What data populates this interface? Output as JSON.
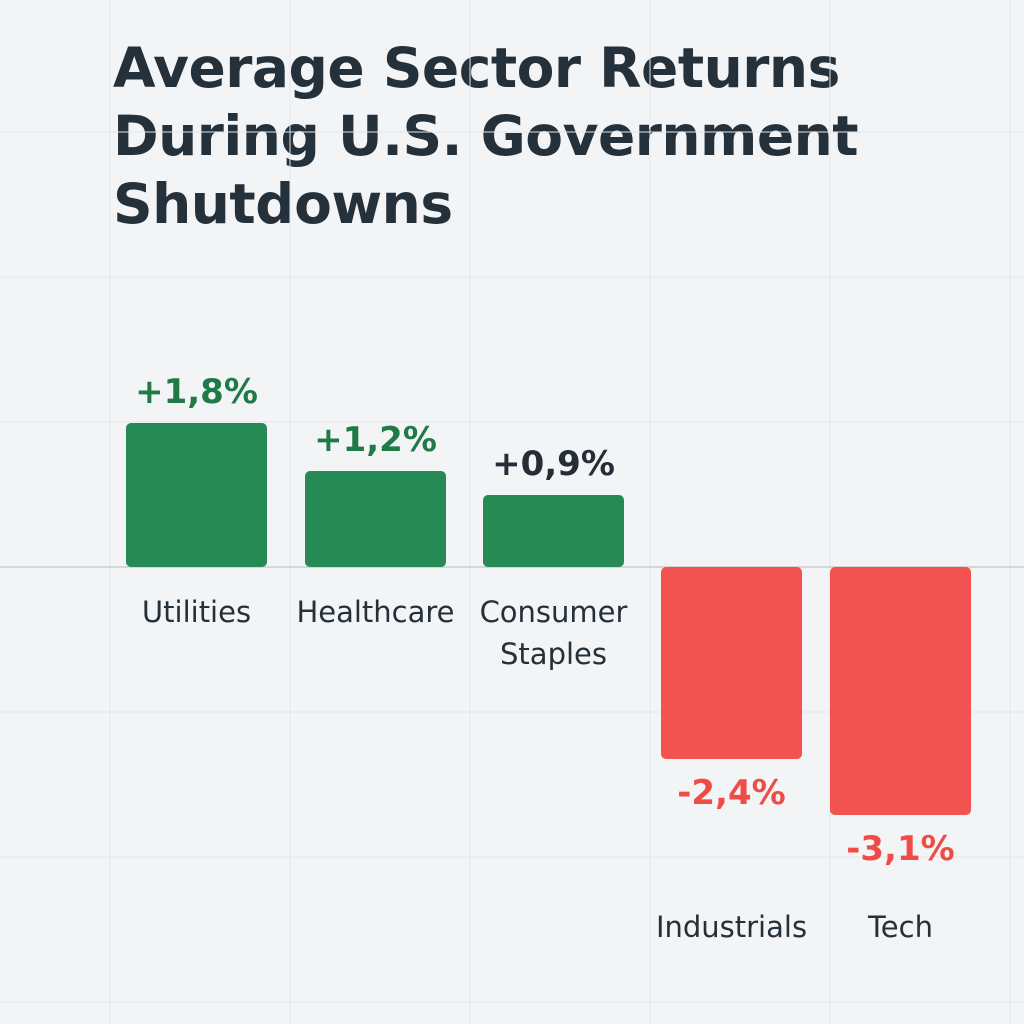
{
  "chart_data": {
    "type": "bar",
    "title": "Average Sector Returns During U.S. Government Shutdowns",
    "categories": [
      "Utilities",
      "Healthcare",
      "Consumer Staples",
      "Industrials",
      "Tech"
    ],
    "values": [
      1.8,
      1.2,
      0.9,
      -2.4,
      -3.1
    ],
    "value_labels": [
      "+1,8%",
      "+1,2%",
      "+0,9%",
      "-2,4%",
      "-3,1%"
    ],
    "category_label_lines": [
      [
        "Utilities"
      ],
      [
        "Healthcare"
      ],
      [
        "Consumer",
        "Staples"
      ],
      [
        "Industrials"
      ],
      [
        "Tech"
      ]
    ],
    "value_label_colors": [
      "#1f7a48",
      "#1f7a48",
      "#252d36",
      "#ef4c48",
      "#ef4c48"
    ],
    "xlabel": "",
    "ylabel": "",
    "grid": true,
    "colors": {
      "positive": "#268a55",
      "negative": "#f25250",
      "text": "#24303a",
      "background": "#f3f4f6",
      "grid": "#e4e6e9"
    }
  }
}
